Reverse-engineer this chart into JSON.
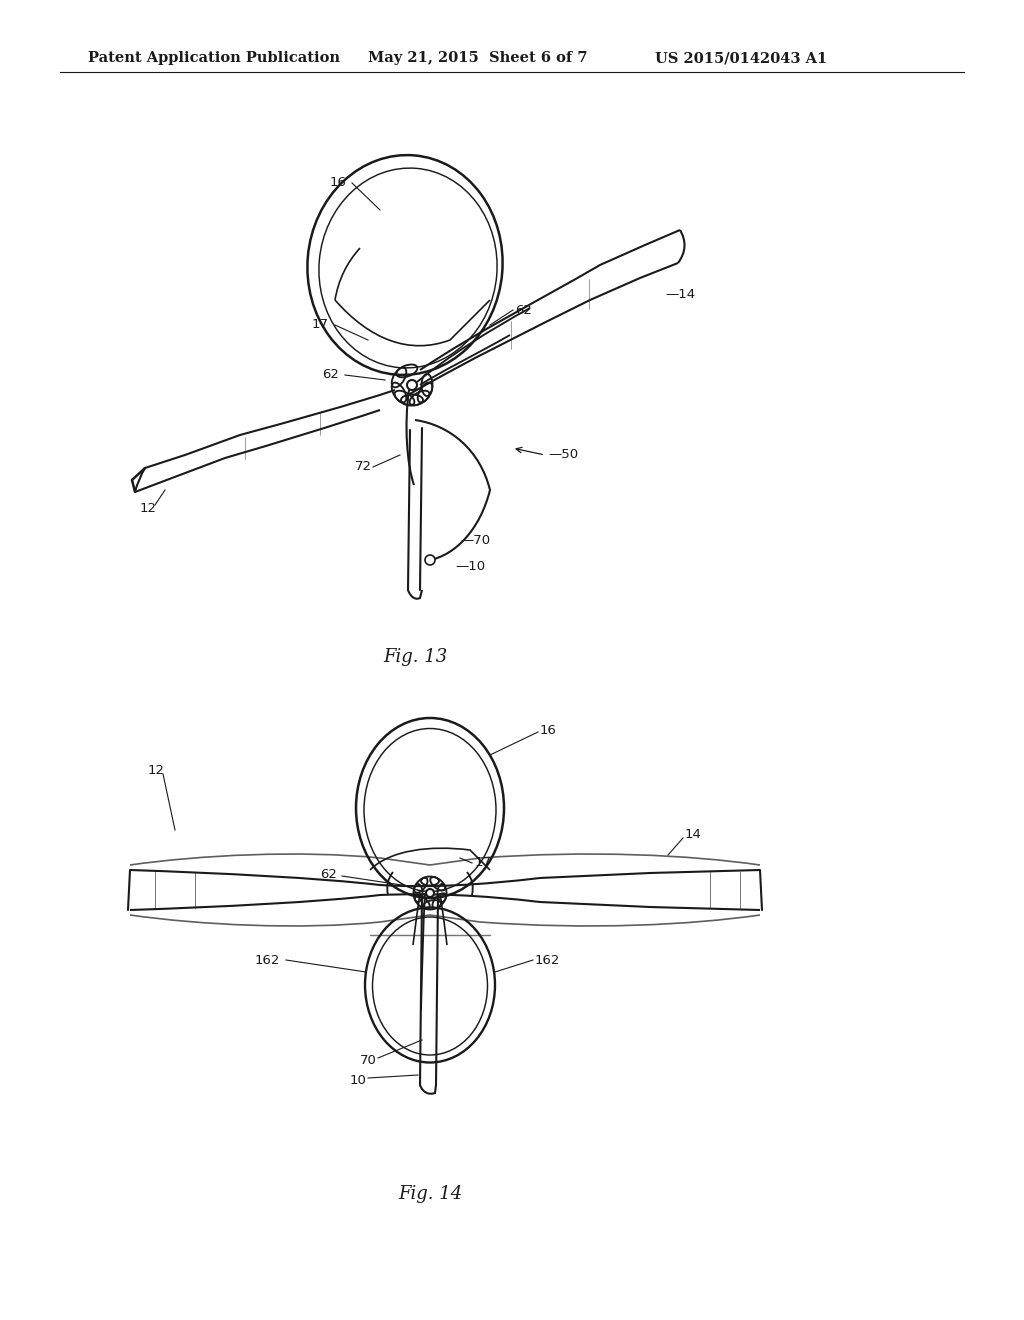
{
  "background_color": "#ffffff",
  "header_left": "Patent Application Publication",
  "header_mid": "May 21, 2015  Sheet 6 of 7",
  "header_right": "US 2015/0142043 A1",
  "header_fontsize": 10.5,
  "fig13_caption": "Fig. 13",
  "fig14_caption": "Fig. 14",
  "line_color": "#1a1a1a",
  "line_width": 1.5,
  "label_fontsize": 9.5,
  "caption_fontsize": 13
}
